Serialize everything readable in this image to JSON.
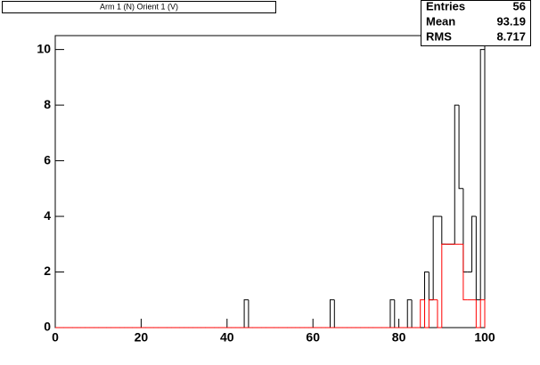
{
  "chart_data": {
    "type": "histogram",
    "title": "Arm 1 (N) Orient 1 (V)",
    "bins": [
      0,
      1,
      2,
      3,
      4,
      5,
      6,
      7,
      8,
      9,
      10,
      11,
      12,
      13,
      14,
      15,
      16,
      17,
      18,
      19,
      20,
      21,
      22,
      23,
      24,
      25,
      26,
      27,
      28,
      29,
      30,
      31,
      32,
      33,
      34,
      35,
      36,
      37,
      38,
      39,
      40,
      41,
      42,
      43,
      44,
      45,
      46,
      47,
      48,
      49,
      50,
      51,
      52,
      53,
      54,
      55,
      56,
      57,
      58,
      59,
      60,
      61,
      62,
      63,
      64,
      65,
      66,
      67,
      68,
      69,
      70,
      71,
      72,
      73,
      74,
      75,
      76,
      77,
      78,
      79,
      80,
      81,
      82,
      83,
      84,
      85,
      86,
      87,
      88,
      89,
      90,
      91,
      92,
      93,
      94,
      95,
      96,
      97,
      98,
      99,
      100
    ],
    "series": [
      {
        "color": "#000000",
        "values": [
          0,
          0,
          0,
          0,
          0,
          0,
          0,
          0,
          0,
          0,
          0,
          0,
          0,
          0,
          0,
          0,
          0,
          0,
          0,
          0,
          0,
          0,
          0,
          0,
          0,
          0,
          0,
          0,
          0,
          0,
          0,
          0,
          0,
          0,
          0,
          0,
          0,
          0,
          0,
          0,
          0,
          0,
          0,
          0,
          1,
          0,
          0,
          0,
          0,
          0,
          0,
          0,
          0,
          0,
          0,
          0,
          0,
          0,
          0,
          0,
          0,
          0,
          0,
          0,
          1,
          0,
          0,
          0,
          0,
          0,
          0,
          0,
          0,
          0,
          0,
          0,
          0,
          0,
          1,
          0,
          0,
          0,
          1,
          0,
          0,
          0,
          2,
          1,
          4,
          4,
          3,
          3,
          3,
          8,
          5,
          2,
          2,
          4,
          1,
          10
        ]
      },
      {
        "color": "#ff0000",
        "values": [
          0,
          0,
          0,
          0,
          0,
          0,
          0,
          0,
          0,
          0,
          0,
          0,
          0,
          0,
          0,
          0,
          0,
          0,
          0,
          0,
          0,
          0,
          0,
          0,
          0,
          0,
          0,
          0,
          0,
          0,
          0,
          0,
          0,
          0,
          0,
          0,
          0,
          0,
          0,
          0,
          0,
          0,
          0,
          0,
          0,
          0,
          0,
          0,
          0,
          0,
          0,
          0,
          0,
          0,
          0,
          0,
          0,
          0,
          0,
          0,
          0,
          0,
          0,
          0,
          0,
          0,
          0,
          0,
          0,
          0,
          0,
          0,
          0,
          0,
          0,
          0,
          0,
          0,
          0,
          0,
          0,
          0,
          0,
          0,
          0,
          1,
          0,
          1,
          1,
          0,
          3,
          3,
          3,
          3,
          3,
          1,
          1,
          1,
          0,
          1
        ]
      }
    ],
    "xlim": [
      0,
      100
    ],
    "xticks": [
      0,
      20,
      40,
      60,
      80,
      100
    ],
    "ylim": [
      0,
      10.5
    ],
    "yticks": [
      0,
      2,
      4,
      6,
      8,
      10
    ],
    "stats": [
      {
        "label": "Entries",
        "value": 56
      },
      {
        "label": "Mean",
        "value": 93.19
      },
      {
        "label": "RMS",
        "value": 8.717
      }
    ]
  }
}
